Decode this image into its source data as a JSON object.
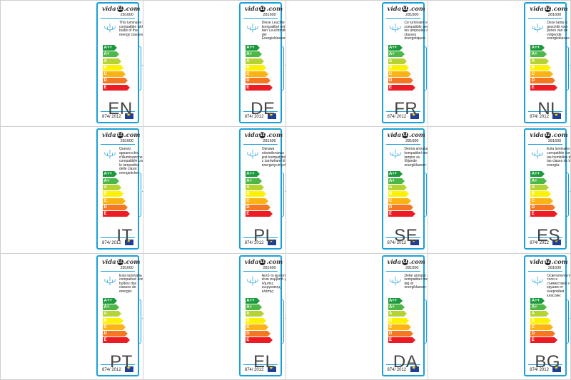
{
  "brand": {
    "name_left": "vida",
    "name_mid": "XL",
    "name_right": ".com"
  },
  "product_code": "281600",
  "regulation": "874/ 2012",
  "classes": [
    {
      "label": "A++",
      "color": "#1a9a3b"
    },
    {
      "label": "A+",
      "color": "#4db848"
    },
    {
      "label": "A",
      "color": "#b6d334"
    },
    {
      "label": "B",
      "color": "#fff200"
    },
    {
      "label": "C",
      "color": "#fcb316"
    },
    {
      "label": "D",
      "color": "#f47821"
    },
    {
      "label": "E",
      "color": "#ed1c24"
    }
  ],
  "languages": [
    {
      "code": "EN",
      "text": "This luminaire is compatible with bulbs of the energy classes:"
    },
    {
      "code": "DE",
      "text": "Diese Leuchte ist kompatibel mit den Leuchtmitteln der Energieklassen:"
    },
    {
      "code": "FR",
      "text": "Ce luminaire est compatible avec les ampoules des classes énergétiques:"
    },
    {
      "code": "NL",
      "text": "Deze lamp is geschikt voor peren van de volgende energieklasse:"
    },
    {
      "code": "IT",
      "text": "Questo apparecchio d'illuminazione è compatibile con le lampadine delle classi energetiche:"
    },
    {
      "code": "PL",
      "text": "Oprawa oświetleniowa jest kompatybilna z żarówkami klas energetycznych:"
    },
    {
      "code": "SE",
      "text": "Denna armatur är kompatibel med lampor av följande energiklasser:"
    },
    {
      "code": "ES",
      "text": "Esta luminaria es compatible con las bombillas de las clases de la energía:"
    },
    {
      "code": "PT",
      "text": "Esta luminária é compatível com bulbos das classes de energia:"
    },
    {
      "code": "EL",
      "text": "Αυτό το φωτιστικό είναι συμβατό με λάμπες ενεργειακής κλάσης:"
    },
    {
      "code": "DA",
      "text": "Dette armatur er kompatibel med løg af energiklasser:"
    },
    {
      "code": "BG",
      "text": "Осветителното тяло е съвместимо с крушки от енергийни класове:"
    }
  ]
}
